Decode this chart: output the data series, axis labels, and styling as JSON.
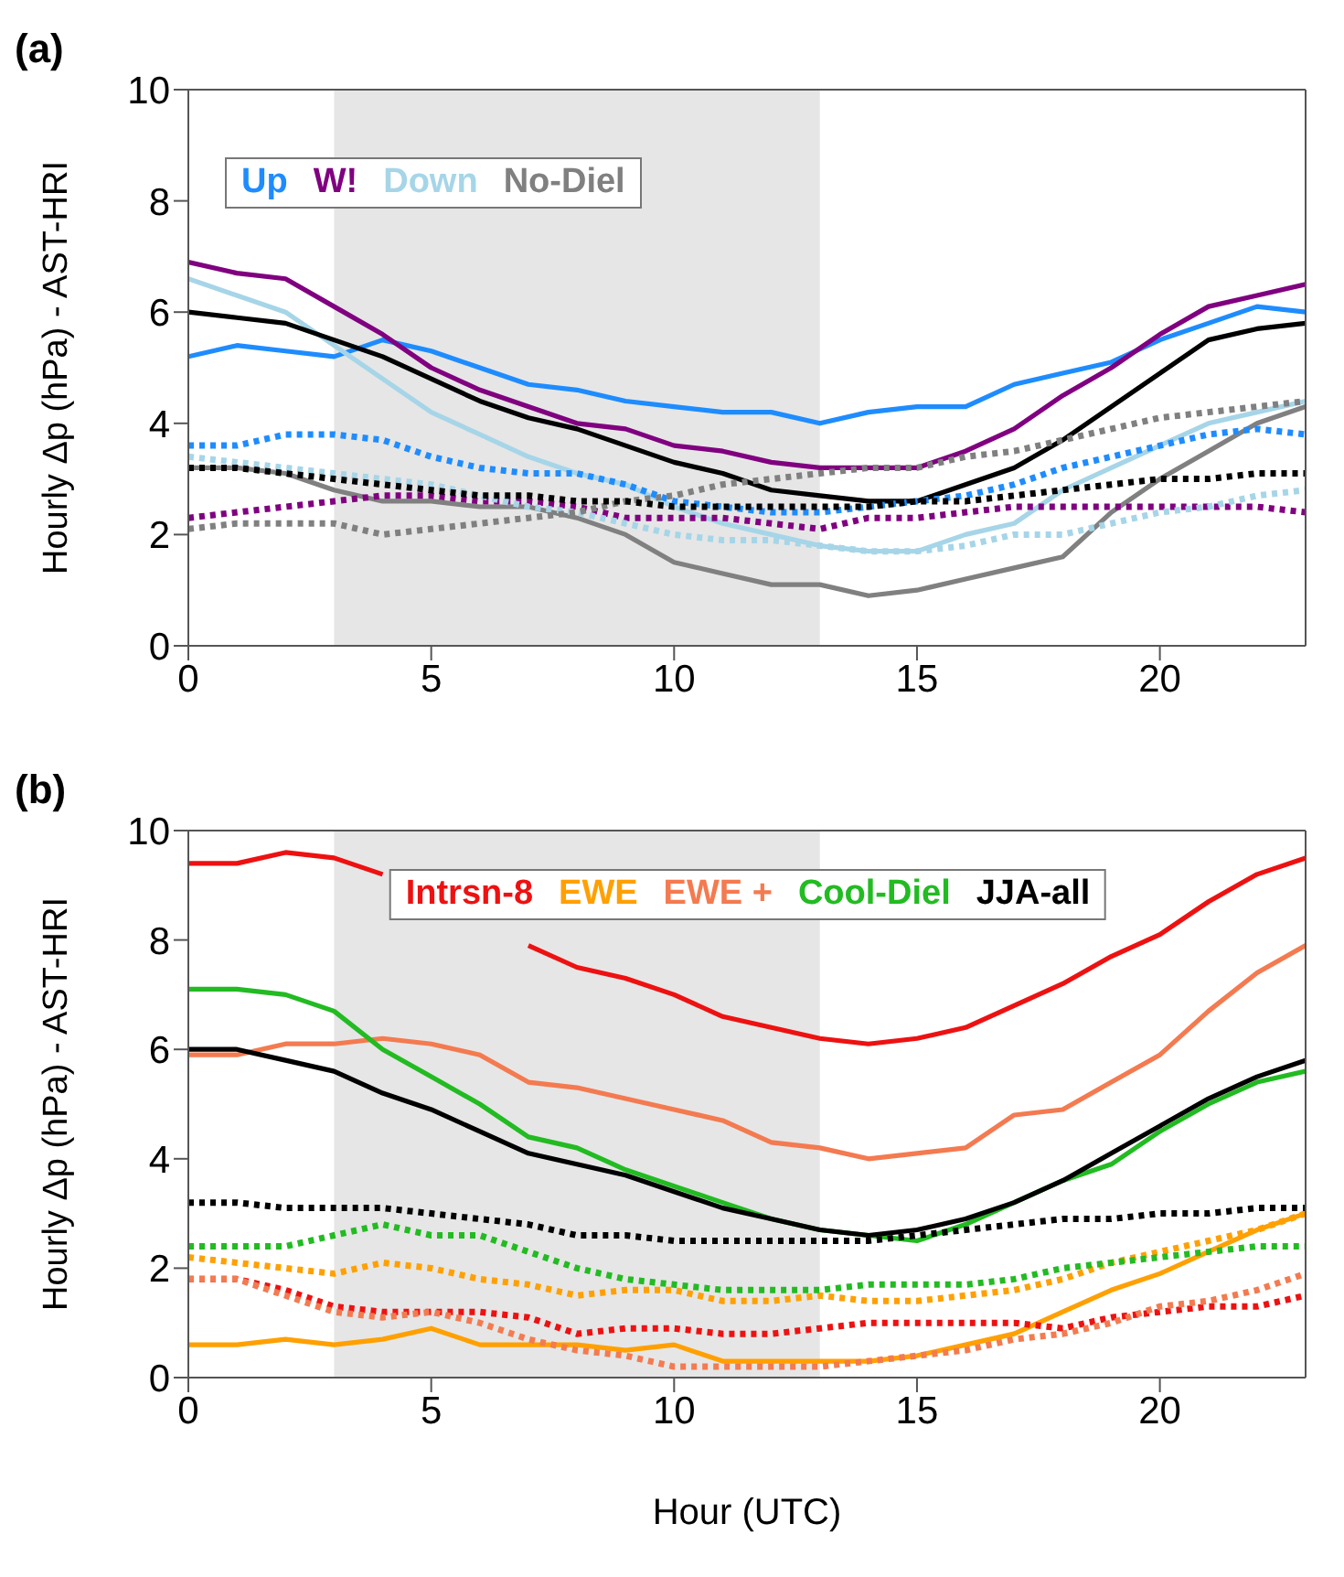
{
  "chart_data": [
    {
      "type": "line",
      "title": "(a)",
      "ylabel": "Hourly Δp (hPa) - AST-HRI",
      "x": [
        0,
        1,
        2,
        3,
        4,
        5,
        6,
        7,
        8,
        9,
        10,
        11,
        12,
        13,
        14,
        15,
        16,
        17,
        18,
        19,
        20,
        21,
        22,
        23
      ],
      "xlim": [
        0,
        23
      ],
      "xticks": [
        0,
        5,
        10,
        15,
        20
      ],
      "ylim": [
        0,
        10
      ],
      "yticks": [
        0,
        2,
        4,
        6,
        8,
        10
      ],
      "grid": false,
      "legend": "top left",
      "marker": "none",
      "bands": [
        {
          "axis": "x",
          "from": 3,
          "to": 13,
          "color": "#e6e6e6"
        }
      ],
      "series": [
        {
          "name": "Up",
          "color": "#1e8cff",
          "line_style": "solid",
          "values": [
            5.2,
            5.4,
            5.3,
            5.2,
            5.5,
            5.3,
            5.0,
            4.7,
            4.6,
            4.4,
            4.3,
            4.2,
            4.2,
            4.0,
            4.2,
            4.3,
            4.3,
            4.7,
            4.9,
            5.1,
            5.5,
            5.8,
            6.1,
            6.0
          ]
        },
        {
          "name": "W!",
          "color": "#800080",
          "line_style": "solid",
          "values": [
            6.9,
            6.7,
            6.6,
            6.1,
            5.6,
            5.0,
            4.6,
            4.3,
            4.0,
            3.9,
            3.6,
            3.5,
            3.3,
            3.2,
            3.2,
            3.2,
            3.5,
            3.9,
            4.5,
            5.0,
            5.6,
            6.1,
            6.3,
            6.5
          ]
        },
        {
          "name": "Down",
          "color": "#a6d5e8",
          "line_style": "solid",
          "values": [
            6.6,
            6.3,
            6.0,
            5.4,
            4.8,
            4.2,
            3.8,
            3.4,
            3.1,
            2.9,
            2.5,
            2.2,
            2.0,
            1.8,
            1.7,
            1.7,
            2.0,
            2.2,
            2.8,
            3.2,
            3.6,
            4.0,
            4.2,
            4.4
          ]
        },
        {
          "name": "No-Diel",
          "color": "#808080",
          "line_style": "solid",
          "values": [
            3.2,
            3.2,
            3.1,
            2.8,
            2.6,
            2.6,
            2.5,
            2.5,
            2.3,
            2.0,
            1.5,
            1.3,
            1.1,
            1.1,
            0.9,
            1.0,
            1.2,
            1.4,
            1.6,
            2.4,
            3.0,
            3.5,
            4.0,
            4.3
          ]
        },
        {
          "color": "#000000",
          "line_style": "solid",
          "values": [
            6.0,
            5.9,
            5.8,
            5.5,
            5.2,
            4.8,
            4.4,
            4.1,
            3.9,
            3.6,
            3.3,
            3.1,
            2.8,
            2.7,
            2.6,
            2.6,
            2.9,
            3.2,
            3.7,
            4.3,
            4.9,
            5.5,
            5.7,
            5.8
          ]
        },
        {
          "color": "#1e8cff",
          "line_style": "dotted",
          "values": [
            3.6,
            3.6,
            3.8,
            3.8,
            3.7,
            3.4,
            3.2,
            3.1,
            3.1,
            2.9,
            2.6,
            2.5,
            2.4,
            2.4,
            2.5,
            2.6,
            2.7,
            2.9,
            3.2,
            3.4,
            3.6,
            3.8,
            3.9,
            3.8
          ]
        },
        {
          "color": "#800080",
          "line_style": "dotted",
          "values": [
            2.3,
            2.4,
            2.5,
            2.6,
            2.7,
            2.7,
            2.6,
            2.6,
            2.5,
            2.3,
            2.3,
            2.3,
            2.2,
            2.1,
            2.3,
            2.3,
            2.4,
            2.5,
            2.5,
            2.5,
            2.5,
            2.5,
            2.5,
            2.4
          ]
        },
        {
          "color": "#a6d5e8",
          "line_style": "dotted",
          "values": [
            3.4,
            3.3,
            3.2,
            3.1,
            3.0,
            2.9,
            2.7,
            2.5,
            2.4,
            2.2,
            2.0,
            1.9,
            1.9,
            1.8,
            1.7,
            1.7,
            1.8,
            2.0,
            2.0,
            2.2,
            2.4,
            2.5,
            2.7,
            2.8
          ]
        },
        {
          "color": "#808080",
          "line_style": "dotted",
          "values": [
            2.1,
            2.2,
            2.2,
            2.2,
            2.0,
            2.1,
            2.2,
            2.3,
            2.4,
            2.6,
            2.7,
            2.9,
            3.0,
            3.1,
            3.2,
            3.2,
            3.4,
            3.5,
            3.7,
            3.9,
            4.1,
            4.2,
            4.3,
            4.4
          ]
        },
        {
          "color": "#000000",
          "line_style": "dotted",
          "values": [
            3.2,
            3.2,
            3.1,
            3.0,
            2.9,
            2.8,
            2.7,
            2.7,
            2.6,
            2.6,
            2.5,
            2.5,
            2.5,
            2.5,
            2.5,
            2.6,
            2.6,
            2.7,
            2.8,
            2.9,
            3.0,
            3.0,
            3.1,
            3.1
          ]
        }
      ]
    },
    {
      "type": "line",
      "title": "(b)",
      "xlabel": "Hour (UTC)",
      "ylabel": "Hourly Δp (hPa) - AST-HRI",
      "x": [
        0,
        1,
        2,
        3,
        4,
        5,
        6,
        7,
        8,
        9,
        10,
        11,
        12,
        13,
        14,
        15,
        16,
        17,
        18,
        19,
        20,
        21,
        22,
        23
      ],
      "xlim": [
        0,
        23
      ],
      "xticks": [
        0,
        5,
        10,
        15,
        20
      ],
      "ylim": [
        0,
        10
      ],
      "yticks": [
        0,
        2,
        4,
        6,
        8,
        10
      ],
      "grid": false,
      "legend": "top",
      "marker": "none",
      "bands": [
        {
          "axis": "x",
          "from": 3,
          "to": 13,
          "color": "#e6e6e6"
        }
      ],
      "series": [
        {
          "name": "Intrsn-8",
          "color": "#ee1111",
          "line_style": "solid",
          "values": [
            9.4,
            9.4,
            9.6,
            9.5,
            9.2,
            null,
            null,
            7.9,
            7.5,
            7.3,
            7.0,
            6.6,
            6.4,
            6.2,
            6.1,
            6.2,
            6.4,
            6.8,
            7.2,
            7.7,
            8.1,
            8.7,
            9.2,
            9.5
          ]
        },
        {
          "name": "EWE",
          "color": "#ffa000",
          "line_style": "solid",
          "values": [
            0.6,
            0.6,
            0.7,
            0.6,
            0.7,
            0.9,
            0.6,
            0.6,
            0.6,
            0.5,
            0.6,
            0.3,
            0.3,
            0.3,
            0.3,
            0.4,
            0.6,
            0.8,
            1.2,
            1.6,
            1.9,
            2.3,
            2.7,
            3.0
          ]
        },
        {
          "name": "EWE +",
          "color": "#f47a50",
          "line_style": "solid",
          "values": [
            5.9,
            5.9,
            6.1,
            6.1,
            6.2,
            6.1,
            5.9,
            5.4,
            5.3,
            5.1,
            4.9,
            4.7,
            4.3,
            4.2,
            4.0,
            4.1,
            4.2,
            4.8,
            4.9,
            5.4,
            5.9,
            6.7,
            7.4,
            7.9
          ]
        },
        {
          "name": "Cool-Diel",
          "color": "#22bb22",
          "line_style": "solid",
          "values": [
            7.1,
            7.1,
            7.0,
            6.7,
            6.0,
            5.5,
            5.0,
            4.4,
            4.2,
            3.8,
            3.5,
            3.2,
            2.9,
            2.7,
            2.6,
            2.5,
            2.8,
            3.2,
            3.6,
            3.9,
            4.5,
            5.0,
            5.4,
            5.6
          ]
        },
        {
          "name": "JJA-all",
          "color": "#000000",
          "line_style": "solid",
          "values": [
            6.0,
            6.0,
            5.8,
            5.6,
            5.2,
            4.9,
            4.5,
            4.1,
            3.9,
            3.7,
            3.4,
            3.1,
            2.9,
            2.7,
            2.6,
            2.7,
            2.9,
            3.2,
            3.6,
            4.1,
            4.6,
            5.1,
            5.5,
            5.8
          ]
        },
        {
          "color": "#ee1111",
          "line_style": "dotted",
          "values": [
            1.8,
            1.8,
            1.6,
            1.3,
            1.2,
            1.2,
            1.2,
            1.1,
            0.8,
            0.9,
            0.9,
            0.8,
            0.8,
            0.9,
            1.0,
            1.0,
            1.0,
            1.0,
            0.9,
            1.1,
            1.2,
            1.3,
            1.3,
            1.5
          ]
        },
        {
          "color": "#ffa000",
          "line_style": "dotted",
          "values": [
            2.2,
            2.1,
            2.0,
            1.9,
            2.1,
            2.0,
            1.8,
            1.7,
            1.5,
            1.6,
            1.6,
            1.4,
            1.4,
            1.5,
            1.4,
            1.4,
            1.5,
            1.6,
            1.8,
            2.1,
            2.3,
            2.5,
            2.7,
            3.0
          ]
        },
        {
          "color": "#f47a50",
          "line_style": "dotted",
          "values": [
            1.8,
            1.8,
            1.5,
            1.2,
            1.1,
            1.2,
            1.0,
            0.7,
            0.5,
            0.4,
            0.2,
            0.2,
            0.2,
            0.2,
            0.3,
            0.4,
            0.5,
            0.7,
            0.8,
            1.0,
            1.3,
            1.4,
            1.6,
            1.9
          ]
        },
        {
          "color": "#22bb22",
          "line_style": "dotted",
          "values": [
            2.4,
            2.4,
            2.4,
            2.6,
            2.8,
            2.6,
            2.6,
            2.3,
            2.0,
            1.8,
            1.7,
            1.6,
            1.6,
            1.6,
            1.7,
            1.7,
            1.7,
            1.8,
            2.0,
            2.1,
            2.2,
            2.3,
            2.4,
            2.4
          ]
        },
        {
          "color": "#000000",
          "line_style": "dotted",
          "values": [
            3.2,
            3.2,
            3.1,
            3.1,
            3.1,
            3.0,
            2.9,
            2.8,
            2.6,
            2.6,
            2.5,
            2.5,
            2.5,
            2.5,
            2.5,
            2.6,
            2.7,
            2.8,
            2.9,
            2.9,
            3.0,
            3.0,
            3.1,
            3.1
          ]
        }
      ]
    }
  ]
}
